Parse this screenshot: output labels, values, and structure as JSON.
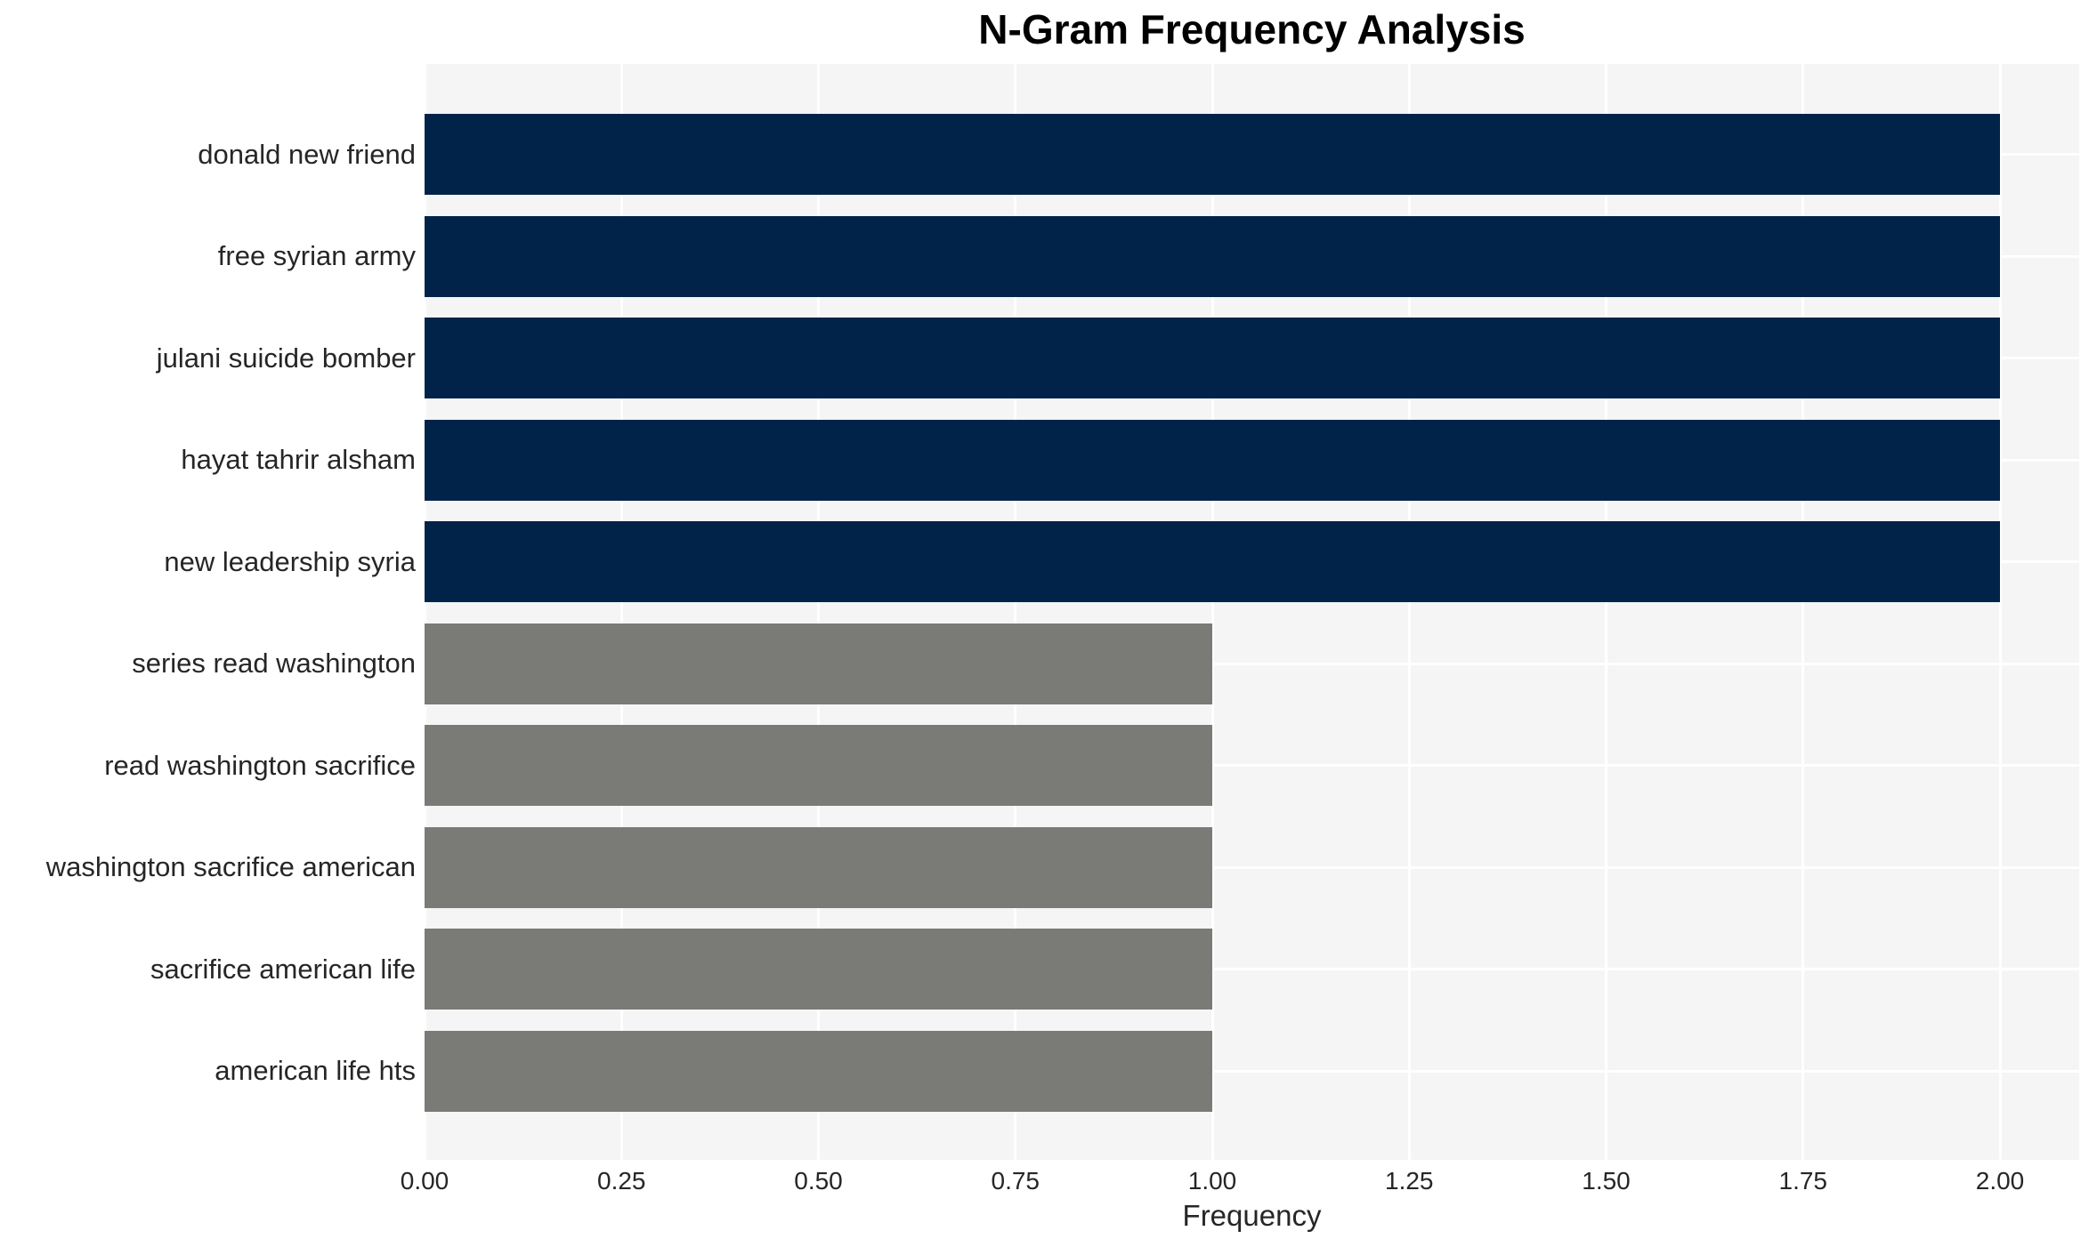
{
  "chart_data": {
    "type": "bar",
    "orientation": "horizontal",
    "title": "N-Gram Frequency Analysis",
    "xlabel": "Frequency",
    "ylabel": "",
    "categories": [
      "donald new friend",
      "free syrian army",
      "julani suicide bomber",
      "hayat tahrir alsham",
      "new leadership syria",
      "series read washington",
      "read washington sacrifice",
      "washington sacrifice american",
      "sacrifice american life",
      "american life hts"
    ],
    "values": [
      2.0,
      2.0,
      2.0,
      2.0,
      2.0,
      1.0,
      1.0,
      1.0,
      1.0,
      1.0
    ],
    "bar_colors": [
      "#022349",
      "#022349",
      "#022349",
      "#022349",
      "#022349",
      "#7a7a76",
      "#7a7a76",
      "#7a7a76",
      "#7a7a76",
      "#7a7a76"
    ],
    "xlim": [
      0,
      2.1
    ],
    "xticks": [
      0,
      0.25,
      0.5,
      0.75,
      1.0,
      1.25,
      1.5,
      1.75,
      2.0
    ],
    "xtick_labels": [
      "0.00",
      "0.25",
      "0.50",
      "0.75",
      "1.00",
      "1.25",
      "1.50",
      "1.75",
      "2.00"
    ],
    "grid": true,
    "legend": false,
    "plot_background": "#f5f5f6",
    "gridline_color": "#ffffff",
    "text_color": "#262626",
    "title_color": "#000000"
  }
}
